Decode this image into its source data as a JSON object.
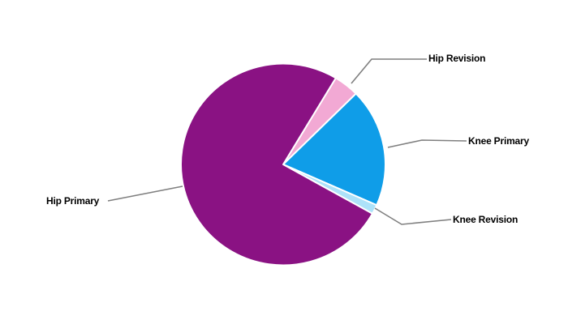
{
  "chart_data": {
    "type": "pie",
    "title": "",
    "legend_position": "none",
    "background_color": "#FFFFFF",
    "separator_color": "#FFFFFF",
    "leader_line_color": "#7F7F7F",
    "label_text_color": "#000000",
    "start_angle_deg_clockwise_from_12": 31,
    "slices": [
      {
        "label": "Hip Revision",
        "value": 4.0,
        "color": "#F2A9D4"
      },
      {
        "label": "Knee Primary",
        "value": 19.0,
        "color": "#0F9DE8"
      },
      {
        "label": "Knee Revision",
        "value": 1.5,
        "color": "#ADE2F9"
      },
      {
        "label": "Hip Primary",
        "value": 75.5,
        "color": "#8A1283"
      }
    ]
  }
}
